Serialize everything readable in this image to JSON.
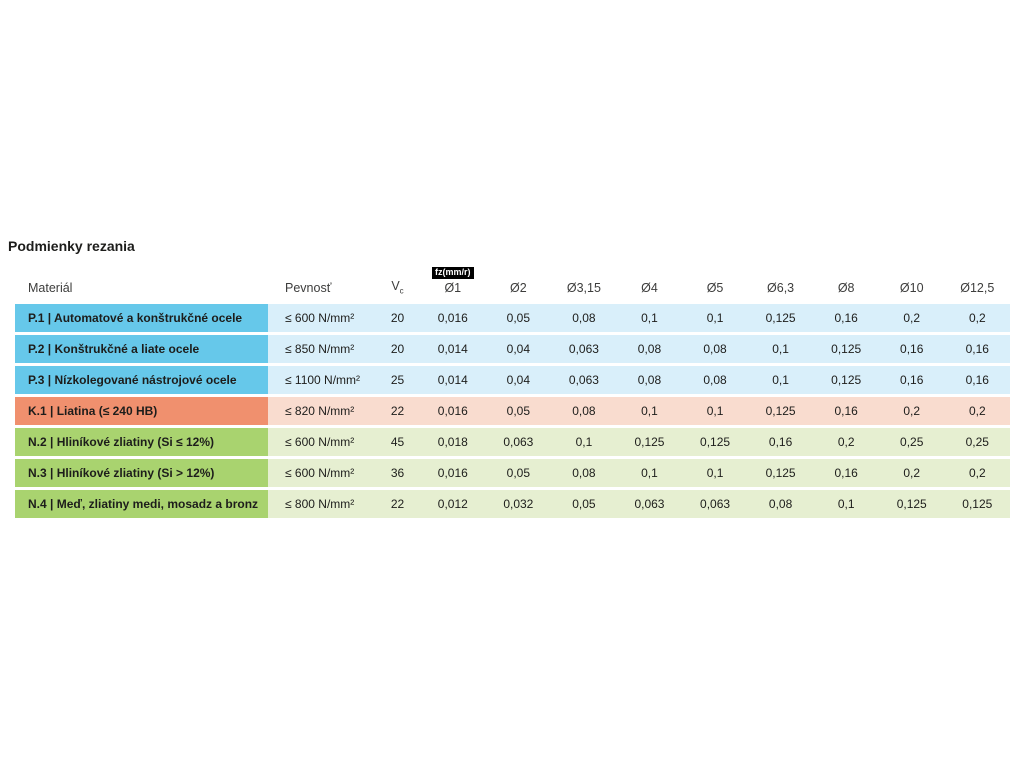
{
  "chart_data": {
    "type": "table",
    "title": "Podmienky rezania",
    "unit_badge": "fz(mm/r)",
    "headers": {
      "material": "Materiál",
      "strength": "Pevnosť",
      "vc_main": "V",
      "vc_sub": "c",
      "diameters": [
        "Ø1",
        "Ø2",
        "Ø3,15",
        "Ø4",
        "Ø5",
        "Ø6,3",
        "Ø8",
        "Ø10",
        "Ø12,5"
      ]
    },
    "rows": [
      {
        "group": "blue",
        "material": "P.1 | Automatové a konštrukčné ocele",
        "strength": "≤ 600 N/mm²",
        "vc": "20",
        "values": [
          "0,016",
          "0,05",
          "0,08",
          "0,1",
          "0,1",
          "0,125",
          "0,16",
          "0,2",
          "0,2"
        ]
      },
      {
        "group": "blue",
        "material": "P.2 | Konštrukčné a liate ocele",
        "strength": "≤ 850 N/mm²",
        "vc": "20",
        "values": [
          "0,014",
          "0,04",
          "0,063",
          "0,08",
          "0,08",
          "0,1",
          "0,125",
          "0,16",
          "0,16"
        ]
      },
      {
        "group": "blue",
        "material": "P.3 | Nízkolegované nástrojové ocele",
        "strength": "≤ 1100 N/mm²",
        "vc": "25",
        "values": [
          "0,014",
          "0,04",
          "0,063",
          "0,08",
          "0,08",
          "0,1",
          "0,125",
          "0,16",
          "0,16"
        ]
      },
      {
        "group": "orange",
        "material": "K.1 | Liatina (≤ 240 HB)",
        "strength": "≤ 820 N/mm²",
        "vc": "22",
        "values": [
          "0,016",
          "0,05",
          "0,08",
          "0,1",
          "0,1",
          "0,125",
          "0,16",
          "0,2",
          "0,2"
        ]
      },
      {
        "group": "green",
        "material": "N.2 | Hliníkové zliatiny (Si ≤ 12%)",
        "strength": "≤ 600 N/mm²",
        "vc": "45",
        "values": [
          "0,018",
          "0,063",
          "0,1",
          "0,125",
          "0,125",
          "0,16",
          "0,2",
          "0,25",
          "0,25"
        ]
      },
      {
        "group": "green",
        "material": "N.3 | Hliníkové zliatiny (Si > 12%)",
        "strength": "≤ 600 N/mm²",
        "vc": "36",
        "values": [
          "0,016",
          "0,05",
          "0,08",
          "0,1",
          "0,1",
          "0,125",
          "0,16",
          "0,2",
          "0,2"
        ]
      },
      {
        "group": "green",
        "material": "N.4 | Meď, zliatiny medi, mosadz a bronz",
        "strength": "≤ 800 N/mm²",
        "vc": "22",
        "values": [
          "0,012",
          "0,032",
          "0,05",
          "0,063",
          "0,063",
          "0,08",
          "0,1",
          "0,125",
          "0,125"
        ]
      }
    ]
  },
  "colors": {
    "blue_strong": "#66c8ea",
    "blue_light": "#d9effa",
    "orange_strong": "#f0906e",
    "orange_light": "#f9dccf",
    "green_strong": "#a9d36f",
    "green_light": "#e6efd1",
    "badge_bg": "#000000",
    "badge_text": "#ffffff",
    "title_text": "#1d1d1b",
    "header_text": "#3d3d3c",
    "cell_text": "#1d1d1b"
  }
}
